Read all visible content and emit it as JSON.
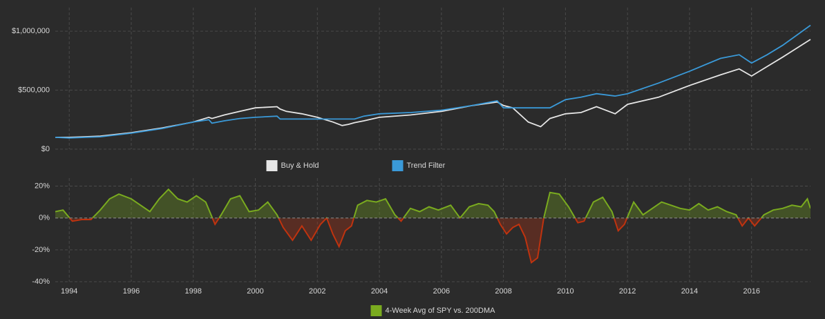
{
  "chart_data": [
    {
      "type": "line",
      "x": [
        1993.55,
        1994,
        1995,
        1996,
        1997,
        1998,
        1998.5,
        1998.6,
        1999,
        1999.5,
        2000,
        2000.7,
        2000.8,
        2001,
        2001.5,
        2002,
        2002.5,
        2002.8,
        2003,
        2003.2,
        2003.5,
        2004,
        2005,
        2006,
        2007,
        2007.8,
        2008,
        2008.3,
        2008.8,
        2009.2,
        2009.5,
        2010,
        2010.5,
        2011,
        2011.6,
        2012,
        2013,
        2014,
        2015,
        2015.6,
        2016,
        2016.5,
        2017,
        2017.9
      ],
      "series": [
        {
          "name": "Buy & Hold",
          "color": "#e6e6e6",
          "values": [
            100000,
            100000,
            110000,
            140000,
            180000,
            230000,
            270000,
            260000,
            290000,
            320000,
            350000,
            360000,
            340000,
            320000,
            300000,
            270000,
            230000,
            200000,
            210000,
            225000,
            240000,
            270000,
            290000,
            320000,
            370000,
            400000,
            370000,
            350000,
            230000,
            190000,
            260000,
            300000,
            310000,
            360000,
            300000,
            380000,
            440000,
            540000,
            630000,
            680000,
            620000,
            700000,
            780000,
            930000
          ]
        },
        {
          "name": "Trend Filter",
          "color": "#3a9ad9",
          "values": [
            100000,
            95000,
            105000,
            135000,
            175000,
            230000,
            250000,
            220000,
            240000,
            260000,
            270000,
            280000,
            255000,
            255000,
            255000,
            255000,
            255000,
            255000,
            255000,
            255000,
            280000,
            300000,
            310000,
            330000,
            370000,
            410000,
            350000,
            350000,
            350000,
            350000,
            350000,
            420000,
            440000,
            470000,
            450000,
            470000,
            560000,
            660000,
            770000,
            800000,
            730000,
            800000,
            880000,
            1050000
          ]
        }
      ],
      "xlim": [
        1993.55,
        2017.9
      ],
      "xticks": [
        1994,
        1996,
        1998,
        2000,
        2002,
        2004,
        2006,
        2008,
        2010,
        2012,
        2014,
        2016
      ],
      "ylim": [
        0,
        1200000
      ],
      "yticks": [
        {
          "value": 0,
          "label": "$0"
        },
        {
          "value": 500000,
          "label": "$500,000"
        },
        {
          "value": 1000000,
          "label": "$1,000,000"
        }
      ],
      "grid": true,
      "legend": "bottom"
    },
    {
      "type": "area",
      "x": [
        1993.55,
        1993.8,
        1994.1,
        1994.4,
        1994.7,
        1995,
        1995.3,
        1995.6,
        1996,
        1996.3,
        1996.6,
        1996.9,
        1997.2,
        1997.5,
        1997.8,
        1998.1,
        1998.4,
        1998.7,
        1998.9,
        1999.2,
        1999.5,
        1999.8,
        2000.1,
        2000.4,
        2000.7,
        2000.9,
        2001.2,
        2001.5,
        2001.8,
        2002.1,
        2002.3,
        2002.5,
        2002.7,
        2002.9,
        2003.1,
        2003.3,
        2003.6,
        2003.9,
        2004.2,
        2004.5,
        2004.7,
        2005,
        2005.3,
        2005.6,
        2005.9,
        2006.3,
        2006.6,
        2006.9,
        2007.2,
        2007.5,
        2007.7,
        2007.9,
        2008.1,
        2008.3,
        2008.5,
        2008.7,
        2008.9,
        2009.1,
        2009.3,
        2009.5,
        2009.8,
        2010.1,
        2010.4,
        2010.6,
        2010.9,
        2011.2,
        2011.5,
        2011.7,
        2011.9,
        2012.2,
        2012.5,
        2012.8,
        2013.1,
        2013.4,
        2013.7,
        2014,
        2014.3,
        2014.6,
        2014.9,
        2015.2,
        2015.5,
        2015.7,
        2015.9,
        2016.1,
        2016.4,
        2016.7,
        2017,
        2017.3,
        2017.6,
        2017.8,
        2017.9
      ],
      "series": [
        {
          "name": "4-Week Avg of SPY vs. 200DMA",
          "color": "#7aab1f",
          "negative_color": "#c0330f",
          "values": [
            4,
            5,
            -2,
            -1,
            -1,
            5,
            12,
            15,
            12,
            8,
            4,
            12,
            18,
            12,
            10,
            14,
            10,
            -4,
            2,
            12,
            14,
            4,
            5,
            10,
            2,
            -6,
            -14,
            -5,
            -14,
            -4,
            0,
            -10,
            -18,
            -8,
            -5,
            8,
            11,
            10,
            12,
            2,
            -2,
            6,
            4,
            7,
            5,
            8,
            0,
            7,
            9,
            8,
            4,
            -4,
            -10,
            -6,
            -4,
            -12,
            -28,
            -25,
            0,
            16,
            15,
            7,
            -3,
            -2,
            10,
            13,
            4,
            -8,
            -4,
            10,
            2,
            6,
            10,
            8,
            6,
            5,
            9,
            5,
            7,
            4,
            2,
            -5,
            0,
            -5,
            2,
            5,
            6,
            8,
            7,
            12,
            6
          ]
        }
      ],
      "xlim": [
        1993.55,
        2017.9
      ],
      "xticks": [
        1994,
        1996,
        1998,
        2000,
        2002,
        2004,
        2006,
        2008,
        2010,
        2012,
        2014,
        2016
      ],
      "ylim": [
        -40,
        25
      ],
      "yticks": [
        {
          "value": -40,
          "label": "-40%"
        },
        {
          "value": -20,
          "label": "-20%"
        },
        {
          "value": 0,
          "label": "0%"
        },
        {
          "value": 20,
          "label": "20%"
        }
      ],
      "grid": true,
      "legend": "bottom"
    }
  ]
}
